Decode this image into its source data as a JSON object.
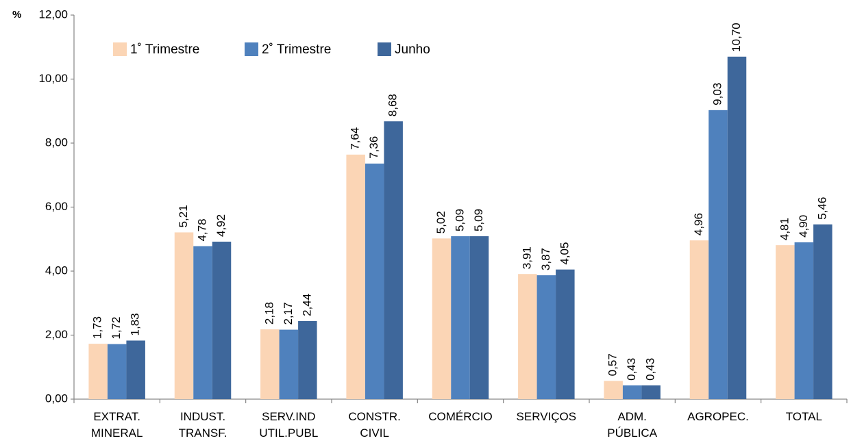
{
  "chart_data": {
    "type": "bar",
    "y_label": "%",
    "categories": [
      "EXTRAT. MINERAL",
      "INDUST. TRANSF.",
      "SERV.IND UTIL.PUBL",
      "CONSTR. CIVIL",
      "COMÉRCIO",
      "SERVIÇOS",
      "ADM. PÚBLICA",
      "AGROPEC.",
      "TOTAL"
    ],
    "series": [
      {
        "name": "1˚ Trimestre",
        "color": "#fbd5b5",
        "values": [
          1.73,
          5.21,
          2.18,
          7.64,
          5.02,
          3.91,
          0.57,
          4.96,
          4.81
        ],
        "value_labels": [
          "1,73",
          "5,21",
          "2,18",
          "7,64",
          "5,02",
          "3,91",
          "0,57",
          "4,96",
          "4,81"
        ]
      },
      {
        "name": "2˚ Trimestre",
        "color": "#4f81bd",
        "values": [
          1.72,
          4.78,
          2.17,
          7.36,
          5.09,
          3.87,
          0.43,
          9.03,
          4.9
        ],
        "value_labels": [
          "1,72",
          "4,78",
          "2,17",
          "7,36",
          "5,09",
          "3,87",
          "0,43",
          "9,03",
          "4,90"
        ]
      },
      {
        "name": "Junho",
        "color": "#3e679b",
        "values": [
          1.83,
          4.92,
          2.44,
          8.68,
          5.09,
          4.05,
          0.43,
          10.7,
          5.46
        ],
        "value_labels": [
          "1,83",
          "4,92",
          "2,44",
          "8,68",
          "5,09",
          "4,05",
          "0,43",
          "10,70",
          "5,46"
        ]
      }
    ],
    "ylim": [
      0,
      12
    ],
    "yticks": [
      {
        "value": 0,
        "label": "0,00"
      },
      {
        "value": 2,
        "label": "2,00"
      },
      {
        "value": 4,
        "label": "4,00"
      },
      {
        "value": 6,
        "label": "6,00"
      },
      {
        "value": 8,
        "label": "8,00"
      },
      {
        "value": 10,
        "label": "10,00"
      },
      {
        "value": 12,
        "label": "12,00"
      }
    ],
    "legend": "top-left",
    "grid": false
  }
}
